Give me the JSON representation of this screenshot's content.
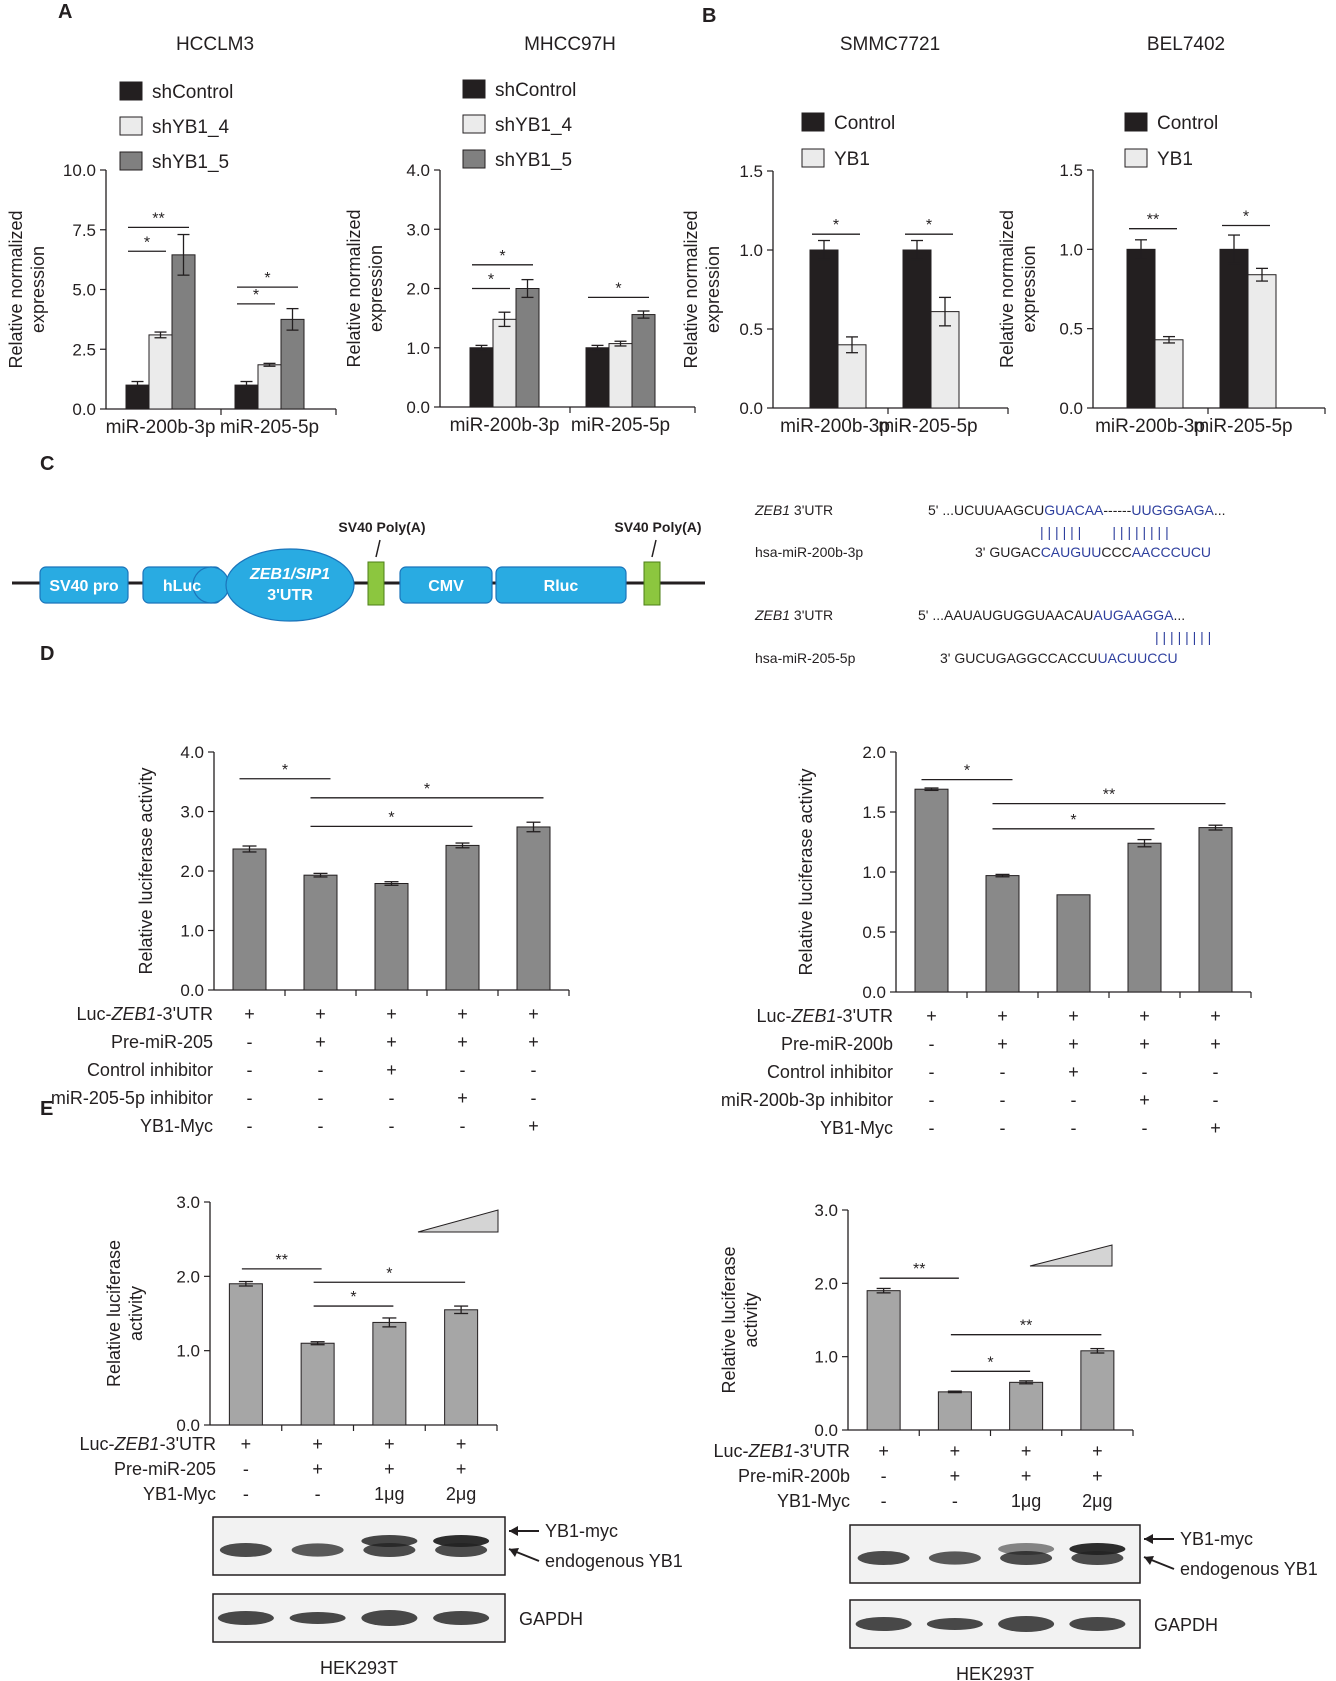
{
  "panel_letters": [
    "A",
    "B",
    "C",
    "D",
    "E"
  ],
  "colors": {
    "black": "#231f20",
    "white": "#ebebeb",
    "gray": "#808080",
    "bar_gray": "#898989",
    "bar_light": "#a6a6a6",
    "vector_blue": "#29abe2",
    "polyA_green": "#8cc63f",
    "seq_blue": "#2e3f9e"
  },
  "chart_data": [
    {
      "id": "A1",
      "type": "bar",
      "title": "HCCLM3",
      "ylabel": "Relative normalized\nexpression",
      "ylim": [
        0,
        10
      ],
      "yticks": [
        "0.0",
        "2.5",
        "5.0",
        "7.5",
        "10.0"
      ],
      "categories": [
        "miR-200b-3p",
        "miR-205-5p"
      ],
      "series": [
        {
          "name": "shControl",
          "color": "black",
          "values": [
            1.0,
            1.0
          ],
          "errors": [
            0.15,
            0.15
          ]
        },
        {
          "name": "shYB1_4",
          "color": "white",
          "values": [
            3.1,
            1.85
          ],
          "errors": [
            0.12,
            0.06
          ]
        },
        {
          "name": "shYB1_5",
          "color": "gray",
          "values": [
            6.45,
            3.75
          ],
          "errors": [
            0.85,
            0.45
          ]
        }
      ],
      "significance": [
        {
          "label": "*",
          "cat": 0,
          "from": 0,
          "to": 1,
          "y": 6.6
        },
        {
          "label": "**",
          "cat": 0,
          "from": 0,
          "to": 2,
          "y": 7.6
        },
        {
          "label": "*",
          "cat": 1,
          "from": 0,
          "to": 1,
          "y": 4.4
        },
        {
          "label": "*",
          "cat": 1,
          "from": 0,
          "to": 2,
          "y": 5.1
        }
      ]
    },
    {
      "id": "A2",
      "type": "bar",
      "title": "MHCC97H",
      "ylabel": "Relative normalized\nexpression",
      "ylim": [
        0,
        4
      ],
      "yticks": [
        "0.0",
        "1.0",
        "2.0",
        "3.0",
        "4.0"
      ],
      "categories": [
        "miR-200b-3p",
        "miR-205-5p"
      ],
      "series": [
        {
          "name": "shControl",
          "color": "black",
          "values": [
            1.0,
            1.0
          ],
          "errors": [
            0.04,
            0.04
          ]
        },
        {
          "name": "shYB1_4",
          "color": "white",
          "values": [
            1.48,
            1.07
          ],
          "errors": [
            0.12,
            0.04
          ]
        },
        {
          "name": "shYB1_5",
          "color": "gray",
          "values": [
            2.0,
            1.56
          ],
          "errors": [
            0.15,
            0.06
          ]
        }
      ],
      "significance": [
        {
          "label": "*",
          "cat": 0,
          "from": 0,
          "to": 1,
          "y": 2.0
        },
        {
          "label": "*",
          "cat": 0,
          "from": 0,
          "to": 2,
          "y": 2.4
        },
        {
          "label": "*",
          "cat": 1,
          "from": 0,
          "to": 2,
          "y": 1.85
        }
      ]
    },
    {
      "id": "B1",
      "type": "bar",
      "title": "SMMC7721",
      "ylabel": "Relative normalized\nexpression",
      "ylim": [
        0,
        1.5
      ],
      "yticks": [
        "0.0",
        "0.5",
        "1.0",
        "1.5"
      ],
      "categories": [
        "miR-200b-3p",
        "miR-205-5p"
      ],
      "series": [
        {
          "name": "Control",
          "color": "black",
          "values": [
            1.0,
            1.0
          ],
          "errors": [
            0.06,
            0.06
          ]
        },
        {
          "name": "YB1",
          "color": "white",
          "values": [
            0.4,
            0.61
          ],
          "errors": [
            0.05,
            0.09
          ]
        }
      ],
      "significance": [
        {
          "label": "*",
          "cat": 0,
          "from": 0,
          "to": 1,
          "y": 1.1
        },
        {
          "label": "*",
          "cat": 1,
          "from": 0,
          "to": 1,
          "y": 1.1
        }
      ]
    },
    {
      "id": "B2",
      "type": "bar",
      "title": "BEL7402",
      "ylabel": "Relative normalized\nexpression",
      "ylim": [
        0,
        1.5
      ],
      "yticks": [
        "0.0",
        "0.5",
        "1.0",
        "1.5"
      ],
      "categories": [
        "miR-200b-3p",
        "miR-205-5p"
      ],
      "series": [
        {
          "name": "Control",
          "color": "black",
          "values": [
            1.0,
            1.0
          ],
          "errors": [
            0.06,
            0.09
          ]
        },
        {
          "name": "YB1",
          "color": "white",
          "values": [
            0.43,
            0.84
          ],
          "errors": [
            0.02,
            0.04
          ]
        }
      ],
      "significance": [
        {
          "label": "**",
          "cat": 0,
          "from": 0,
          "to": 1,
          "y": 1.13
        },
        {
          "label": "*",
          "cat": 1,
          "from": 0,
          "to": 1,
          "y": 1.15
        }
      ]
    },
    {
      "id": "D1",
      "type": "bar",
      "ylabel": "Relative luciferase activity",
      "ylim": [
        0,
        4
      ],
      "yticks": [
        "0.0",
        "1.0",
        "2.0",
        "3.0",
        "4.0"
      ],
      "values": [
        2.37,
        1.93,
        1.79,
        2.43,
        2.74
      ],
      "errors": [
        0.05,
        0.03,
        0.03,
        0.04,
        0.08
      ],
      "significance": [
        {
          "label": "*",
          "from": 0,
          "to": 1,
          "y": 3.55
        },
        {
          "label": "*",
          "from": 1,
          "to": 3,
          "y": 2.75
        },
        {
          "label": "*",
          "from": 1,
          "to": 4,
          "y": 3.23
        }
      ],
      "table": [
        {
          "label": "Luc-",
          "italic": "ZEB1",
          "suffix": "-3'UTR",
          "cells": [
            "+",
            "+",
            "+",
            "+",
            "+"
          ]
        },
        {
          "label": "Pre-miR-205",
          "cells": [
            "-",
            "+",
            "+",
            "+",
            "+"
          ]
        },
        {
          "label": "Control inhibitor",
          "cells": [
            "-",
            "-",
            "+",
            "-",
            "-"
          ]
        },
        {
          "label": "miR-205-5p inhibitor",
          "cells": [
            "-",
            "-",
            "-",
            "+",
            "-"
          ]
        },
        {
          "label": "YB1-Myc",
          "cells": [
            "-",
            "-",
            "-",
            "-",
            "+"
          ]
        }
      ]
    },
    {
      "id": "D2",
      "type": "bar",
      "ylabel": "Relative luciferase activity",
      "ylim": [
        0,
        2
      ],
      "yticks": [
        "0.0",
        "0.5",
        "1.0",
        "1.5",
        "2.0"
      ],
      "values": [
        1.69,
        0.97,
        0.81,
        1.24,
        1.37
      ],
      "errors": [
        0.01,
        0.01,
        0.0,
        0.03,
        0.02
      ],
      "significance": [
        {
          "label": "*",
          "from": 0,
          "to": 1,
          "y": 1.77
        },
        {
          "label": "*",
          "from": 1,
          "to": 3,
          "y": 1.36
        },
        {
          "label": "**",
          "from": 1,
          "to": 4,
          "y": 1.57
        }
      ],
      "table": [
        {
          "label": "Luc-",
          "italic": "ZEB1",
          "suffix": "-3'UTR",
          "cells": [
            "+",
            "+",
            "+",
            "+",
            "+"
          ]
        },
        {
          "label": "Pre-miR-200b",
          "cells": [
            "-",
            "+",
            "+",
            "+",
            "+"
          ]
        },
        {
          "label": "Control inhibitor",
          "cells": [
            "-",
            "-",
            "+",
            "-",
            "-"
          ]
        },
        {
          "label": "miR-200b-3p inhibitor",
          "cells": [
            "-",
            "-",
            "-",
            "+",
            "-"
          ]
        },
        {
          "label": "YB1-Myc",
          "cells": [
            "-",
            "-",
            "-",
            "-",
            "+"
          ]
        }
      ]
    },
    {
      "id": "E1",
      "type": "bar",
      "ylabel": "Relative luciferase\nactivity",
      "ylim": [
        0,
        3
      ],
      "yticks": [
        "0.0",
        "1.0",
        "2.0",
        "3.0"
      ],
      "values": [
        1.9,
        1.1,
        1.38,
        1.55
      ],
      "errors": [
        0.03,
        0.02,
        0.06,
        0.05
      ],
      "significance": [
        {
          "label": "**",
          "from": 0,
          "to": 1,
          "y": 2.1
        },
        {
          "label": "*",
          "from": 1,
          "to": 2,
          "y": 1.6
        },
        {
          "label": "*",
          "from": 1,
          "to": 3,
          "y": 1.92
        }
      ],
      "table": [
        {
          "label": "Luc-",
          "italic": "ZEB1",
          "suffix": "-3'UTR",
          "cells": [
            "+",
            "+",
            "+",
            "+"
          ]
        },
        {
          "label": "Pre-miR-205",
          "cells": [
            "-",
            "+",
            "+",
            "+"
          ]
        },
        {
          "label": "YB1-Myc",
          "cells": [
            "-",
            "-",
            "1μg",
            "2μg"
          ]
        }
      ],
      "blot_labels": [
        "YB1-myc",
        "endogenous YB1",
        "GAPDH"
      ],
      "cell_line": "HEK293T"
    },
    {
      "id": "E2",
      "type": "bar",
      "ylabel": "Relative luciferase\nactivity",
      "ylim": [
        0,
        3
      ],
      "yticks": [
        "0.0",
        "1.0",
        "2.0",
        "3.0"
      ],
      "values": [
        1.9,
        0.52,
        0.65,
        1.08
      ],
      "errors": [
        0.03,
        0.01,
        0.02,
        0.03
      ],
      "significance": [
        {
          "label": "**",
          "from": 0,
          "to": 1,
          "y": 2.07
        },
        {
          "label": "*",
          "from": 1,
          "to": 2,
          "y": 0.8
        },
        {
          "label": "**",
          "from": 1,
          "to": 3,
          "y": 1.3
        }
      ],
      "table": [
        {
          "label": "Luc-",
          "italic": "ZEB1",
          "suffix": "-3'UTR",
          "cells": [
            "+",
            "+",
            "+",
            "+"
          ]
        },
        {
          "label": "Pre-miR-200b",
          "cells": [
            "-",
            "+",
            "+",
            "+"
          ]
        },
        {
          "label": "YB1-Myc",
          "cells": [
            "-",
            "-",
            "1μg",
            "2μg"
          ]
        }
      ],
      "blot_labels": [
        "YB1-myc",
        "endogenous YB1",
        "GAPDH"
      ],
      "cell_line": "HEK293T"
    }
  ],
  "construct": {
    "boxes": [
      "SV40 pro",
      "hLuc",
      "CMV",
      "Rluc"
    ],
    "utr_line1": "ZEB1/SIP1",
    "utr_line2": "3'UTR",
    "polyA": [
      "SV40 Poly(A)",
      "SV40 Poly(A)"
    ]
  },
  "alignments": [
    {
      "gene": "ZEB1",
      "gene_suffix": " 3'UTR",
      "mirna": "hsa-miR-200b-3p",
      "top_prefix": "5' ...UCUUAAGCU",
      "top_blue1": "GUACAA",
      "top_mid": "------",
      "top_blue2": "UUGGGAGA",
      "top_suffix": "...",
      "bars": "| | | | | |        | | | | | | | |",
      "bot_prefix": "3'  GUGAC",
      "bot_blue1": "CAUGUU",
      "bot_mid": "CCC",
      "bot_blue2": "AACCCUCU",
      "bot_suffix": ""
    },
    {
      "gene": "ZEB1",
      "gene_suffix": " 3'UTR",
      "mirna": "hsa-miR-205-5p",
      "top_prefix": "5'  ...AAUAUGUGGUAACAU",
      "top_blue1": "AUGAAGGA",
      "top_mid": "",
      "top_blue2": "",
      "top_suffix": "...",
      "bars": "| | | | | | | |",
      "bot_prefix": "3' GUCUGAGGCCACCU",
      "bot_blue1": "UACUUCCU",
      "bot_mid": "",
      "bot_blue2": "",
      "bot_suffix": ""
    }
  ]
}
